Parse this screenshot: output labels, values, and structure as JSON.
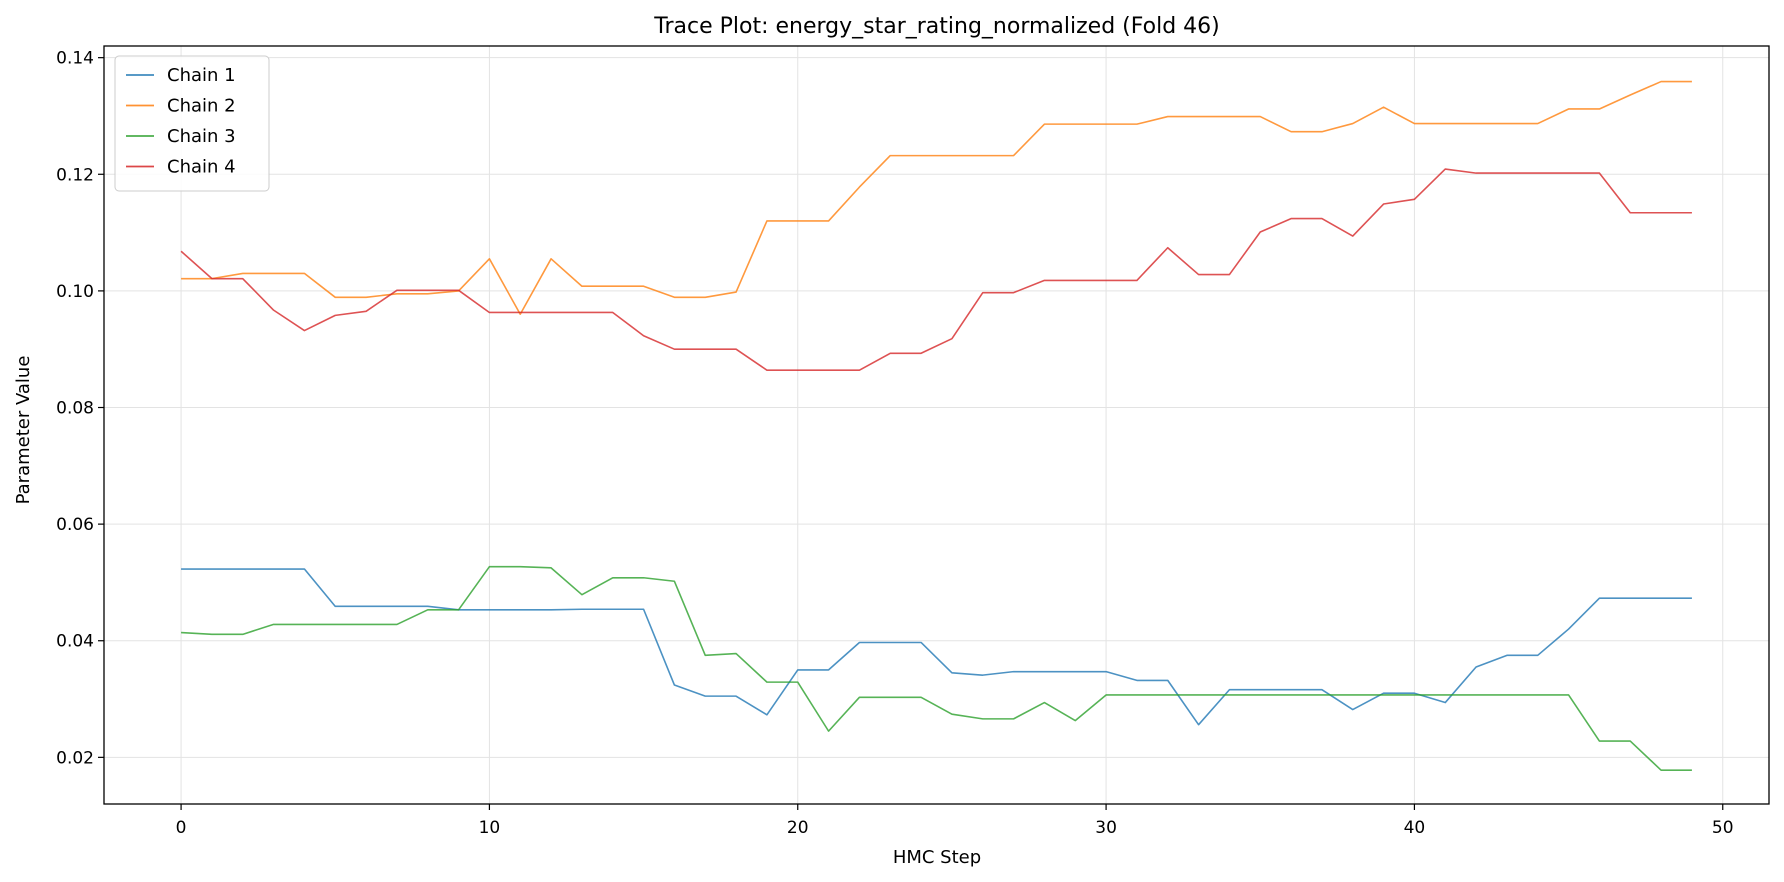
{
  "chart_data": {
    "type": "line",
    "title": "Trace Plot: energy_star_rating_normalized (Fold 46)",
    "xlabel": "HMC Step",
    "ylabel": "Parameter Value",
    "xlim": [
      -2.5,
      51.5
    ],
    "ylim": [
      0.012,
      0.142
    ],
    "xticks": [
      0,
      10,
      20,
      30,
      40,
      50
    ],
    "yticks": [
      0.02,
      0.04,
      0.06,
      0.08,
      0.1,
      0.12,
      0.14
    ],
    "ytick_labels": [
      "0.02",
      "0.04",
      "0.06",
      "0.08",
      "0.10",
      "0.12",
      "0.14"
    ],
    "grid": true,
    "legend_position": "top-left",
    "x": [
      0,
      1,
      2,
      3,
      4,
      5,
      6,
      7,
      8,
      9,
      10,
      11,
      12,
      13,
      14,
      15,
      16,
      17,
      18,
      19,
      20,
      21,
      22,
      23,
      24,
      25,
      26,
      27,
      28,
      29,
      30,
      31,
      32,
      33,
      34,
      35,
      36,
      37,
      38,
      39,
      40,
      41,
      42,
      43,
      44,
      45,
      46,
      47,
      48,
      49
    ],
    "series": [
      {
        "name": "Chain 1",
        "color": "#1f77b4",
        "values": [
          0.0523,
          0.0523,
          0.0523,
          0.0523,
          0.0523,
          0.0459,
          0.0459,
          0.0459,
          0.0459,
          0.0453,
          0.0453,
          0.0453,
          0.0453,
          0.0454,
          0.0454,
          0.0454,
          0.0324,
          0.0305,
          0.0305,
          0.0273,
          0.035,
          0.035,
          0.0397,
          0.0397,
          0.0397,
          0.0345,
          0.0341,
          0.0347,
          0.0347,
          0.0347,
          0.0347,
          0.0332,
          0.0332,
          0.0256,
          0.0316,
          0.0316,
          0.0316,
          0.0316,
          0.0282,
          0.031,
          0.031,
          0.0294,
          0.0355,
          0.0375,
          0.0375,
          0.042,
          0.0473,
          0.0473,
          0.0473,
          0.0473
        ]
      },
      {
        "name": "Chain 2",
        "color": "#ff7f0e",
        "values": [
          0.1021,
          0.1021,
          0.103,
          0.103,
          0.103,
          0.0989,
          0.0989,
          0.0995,
          0.0995,
          0.1,
          0.1055,
          0.096,
          0.1055,
          0.1008,
          0.1008,
          0.1008,
          0.0989,
          0.0989,
          0.0998,
          0.112,
          0.112,
          0.112,
          0.1178,
          0.1232,
          0.1232,
          0.1232,
          0.1232,
          0.1232,
          0.1286,
          0.1286,
          0.1286,
          0.1286,
          0.1299,
          0.1299,
          0.1299,
          0.1299,
          0.1273,
          0.1273,
          0.1287,
          0.1315,
          0.1287,
          0.1287,
          0.1287,
          0.1287,
          0.1287,
          0.1312,
          0.1312,
          0.1336,
          0.1359,
          0.1359
        ]
      },
      {
        "name": "Chain 3",
        "color": "#2ca02c",
        "values": [
          0.0414,
          0.0411,
          0.0411,
          0.0428,
          0.0428,
          0.0428,
          0.0428,
          0.0428,
          0.0453,
          0.0453,
          0.0527,
          0.0527,
          0.0525,
          0.0479,
          0.0508,
          0.0508,
          0.0502,
          0.0375,
          0.0378,
          0.0329,
          0.0329,
          0.0245,
          0.0303,
          0.0303,
          0.0303,
          0.0274,
          0.0266,
          0.0266,
          0.0294,
          0.0263,
          0.0307,
          0.0307,
          0.0307,
          0.0307,
          0.0307,
          0.0307,
          0.0307,
          0.0307,
          0.0307,
          0.0307,
          0.0307,
          0.0307,
          0.0307,
          0.0307,
          0.0307,
          0.0307,
          0.0228,
          0.0228,
          0.0178,
          0.0178
        ]
      },
      {
        "name": "Chain 4",
        "color": "#d62728",
        "values": [
          0.1068,
          0.1021,
          0.1021,
          0.0967,
          0.0932,
          0.0958,
          0.0965,
          0.1001,
          0.1001,
          0.1001,
          0.0963,
          0.0963,
          0.0963,
          0.0963,
          0.0963,
          0.0923,
          0.09,
          0.09,
          0.09,
          0.0864,
          0.0864,
          0.0864,
          0.0864,
          0.0893,
          0.0893,
          0.0918,
          0.0997,
          0.0997,
          0.1018,
          0.1018,
          0.1018,
          0.1018,
          0.1074,
          0.1028,
          0.1028,
          0.1101,
          0.1124,
          0.1124,
          0.1094,
          0.1149,
          0.1157,
          0.1209,
          0.1202,
          0.1202,
          0.1202,
          0.1202,
          0.1202,
          0.1134,
          0.1134,
          0.1134
        ]
      }
    ]
  }
}
